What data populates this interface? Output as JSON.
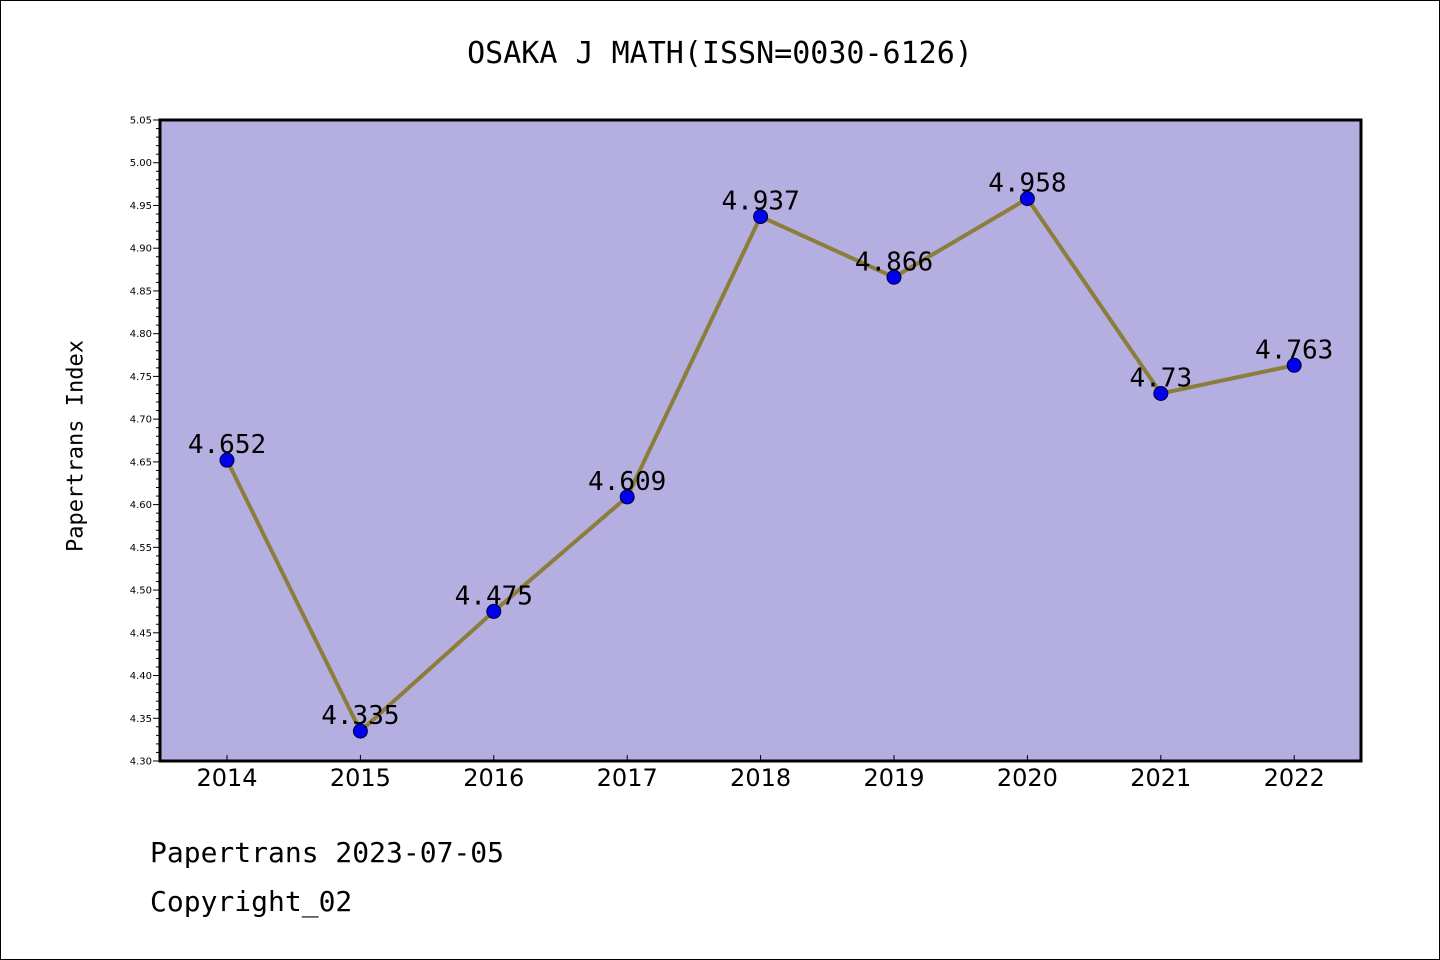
{
  "chart_data": {
    "type": "line",
    "title": "OSAKA J MATH(ISSN=0030-6126)",
    "xlabel": "",
    "ylabel": "Papertrans Index",
    "categories": [
      "2014",
      "2015",
      "2016",
      "2017",
      "2018",
      "2019",
      "2020",
      "2021",
      "2022"
    ],
    "series": [
      {
        "values": [
          4.652,
          4.335,
          4.475,
          4.609,
          4.937,
          4.866,
          4.958,
          4.73,
          4.763
        ],
        "labels": [
          "4.652",
          "4.335",
          "4.475",
          "4.609",
          "4.937",
          "4.866",
          "4.958",
          "4.73",
          "4.763"
        ]
      }
    ],
    "ylim": [
      4.3,
      5.05
    ],
    "y_ticks": [
      "4.30",
      "4.35",
      "4.40",
      "4.45",
      "4.50",
      "4.55",
      "4.60",
      "4.65",
      "4.70",
      "4.75",
      "4.80",
      "4.85",
      "4.90",
      "4.95",
      "5.00",
      "5.05"
    ],
    "grid": false,
    "colors": {
      "plot_background": "#b5aee1",
      "line": "#8b7d3a",
      "marker": "#0000ee"
    }
  },
  "footer": {
    "line1": "Papertrans 2023-07-05",
    "line2": "Copyright_02"
  }
}
